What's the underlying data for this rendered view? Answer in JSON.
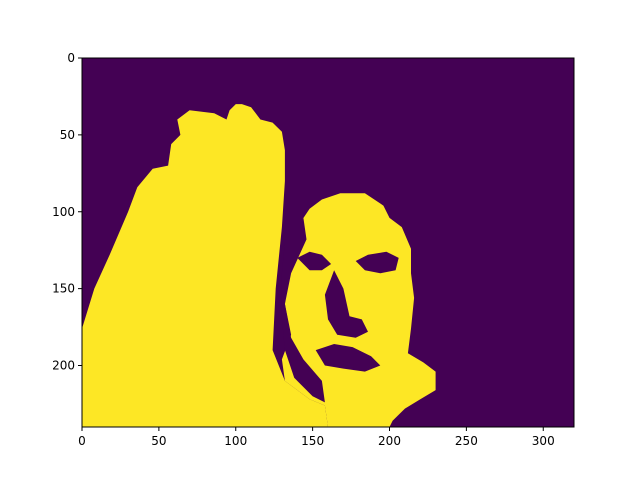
{
  "chart_data": {
    "type": "heatmap",
    "title": "",
    "xlabel": "",
    "ylabel": "",
    "image_width": 320,
    "image_height": 240,
    "xlim": [
      0,
      320
    ],
    "ylim": [
      240,
      0
    ],
    "x_ticks": [
      0,
      50,
      100,
      150,
      200,
      250,
      300
    ],
    "y_ticks": [
      0,
      50,
      100,
      150,
      200
    ],
    "x_tick_labels": [
      "0",
      "50",
      "100",
      "150",
      "200",
      "250",
      "300"
    ],
    "y_tick_labels": [
      "0",
      "50",
      "100",
      "150",
      "200"
    ],
    "colormap": "viridis",
    "values_present": [
      0,
      1
    ],
    "colors": {
      "0": "#440154",
      "1": "#fde725"
    },
    "grid": false,
    "regions": [
      {
        "name": "hand",
        "value": 1,
        "polygon": [
          [
            0,
            240
          ],
          [
            0,
            176
          ],
          [
            8,
            150
          ],
          [
            18,
            128
          ],
          [
            30,
            100
          ],
          [
            36,
            84
          ],
          [
            46,
            72
          ],
          [
            56,
            70
          ],
          [
            58,
            56
          ],
          [
            64,
            50
          ],
          [
            62,
            40
          ],
          [
            70,
            34
          ],
          [
            86,
            36
          ],
          [
            94,
            40
          ],
          [
            96,
            34
          ],
          [
            100,
            30
          ],
          [
            104,
            30
          ],
          [
            110,
            32
          ],
          [
            116,
            40
          ],
          [
            124,
            42
          ],
          [
            130,
            48
          ],
          [
            132,
            60
          ],
          [
            132,
            80
          ],
          [
            130,
            110
          ],
          [
            126,
            150
          ],
          [
            124,
            190
          ],
          [
            132,
            210
          ],
          [
            148,
            222
          ],
          [
            158,
            226
          ],
          [
            160,
            240
          ]
        ]
      },
      {
        "name": "face",
        "value": 1,
        "polygon": [
          [
            160,
            240
          ],
          [
            158,
            226
          ],
          [
            148,
            222
          ],
          [
            132,
            210
          ],
          [
            130,
            196
          ],
          [
            136,
            180
          ],
          [
            132,
            160
          ],
          [
            134,
            140
          ],
          [
            140,
            130
          ],
          [
            140,
            110
          ],
          [
            148,
            98
          ],
          [
            156,
            92
          ],
          [
            168,
            88
          ],
          [
            184,
            88
          ],
          [
            196,
            96
          ],
          [
            200,
            104
          ],
          [
            208,
            110
          ],
          [
            214,
            124
          ],
          [
            214,
            140
          ],
          [
            216,
            156
          ],
          [
            214,
            176
          ],
          [
            212,
            192
          ],
          [
            222,
            198
          ],
          [
            230,
            204
          ],
          [
            230,
            216
          ],
          [
            220,
            222
          ],
          [
            210,
            228
          ],
          [
            202,
            236
          ],
          [
            200,
            240
          ]
        ]
      }
    ],
    "dark_features": [
      {
        "name": "left-eye",
        "value": 0,
        "polygon": [
          [
            140,
            130
          ],
          [
            148,
            126
          ],
          [
            156,
            128
          ],
          [
            162,
            134
          ],
          [
            156,
            138
          ],
          [
            148,
            138
          ]
        ]
      },
      {
        "name": "right-eye",
        "value": 0,
        "polygon": [
          [
            178,
            132
          ],
          [
            186,
            128
          ],
          [
            198,
            126
          ],
          [
            206,
            130
          ],
          [
            204,
            138
          ],
          [
            194,
            140
          ],
          [
            184,
            138
          ]
        ]
      },
      {
        "name": "nose-shadow",
        "value": 0,
        "polygon": [
          [
            164,
            138
          ],
          [
            170,
            150
          ],
          [
            174,
            168
          ],
          [
            182,
            170
          ],
          [
            186,
            178
          ],
          [
            178,
            182
          ],
          [
            166,
            180
          ],
          [
            160,
            170
          ],
          [
            158,
            154
          ]
        ]
      },
      {
        "name": "mouth",
        "value": 0,
        "polygon": [
          [
            152,
            190
          ],
          [
            164,
            186
          ],
          [
            176,
            188
          ],
          [
            188,
            194
          ],
          [
            194,
            200
          ],
          [
            184,
            204
          ],
          [
            170,
            202
          ],
          [
            158,
            200
          ]
        ]
      },
      {
        "name": "face-left-shadow",
        "value": 0,
        "polygon": [
          [
            132,
            120
          ],
          [
            144,
            104
          ],
          [
            146,
            118
          ],
          [
            136,
            140
          ],
          [
            132,
            160
          ],
          [
            136,
            182
          ],
          [
            144,
            196
          ],
          [
            156,
            210
          ],
          [
            158,
            224
          ],
          [
            150,
            220
          ],
          [
            138,
            208
          ],
          [
            132,
            190
          ],
          [
            130,
            170
          ],
          [
            130,
            140
          ]
        ]
      }
    ]
  }
}
